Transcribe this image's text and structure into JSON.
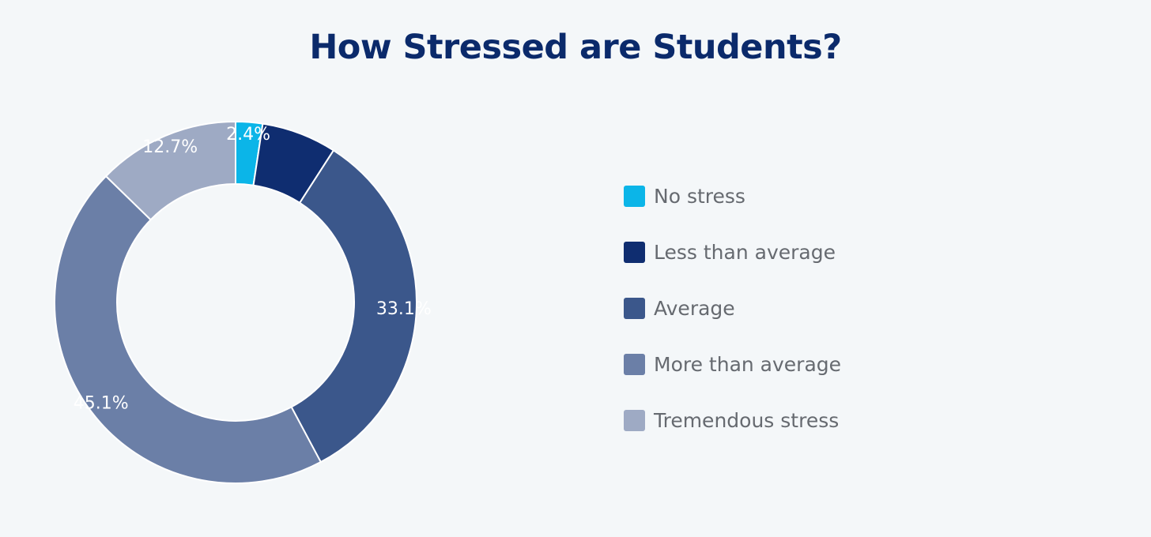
{
  "chart_data": {
    "type": "pie",
    "variant": "donut",
    "title": "How Stressed are Students?",
    "categories": [
      "No stress",
      "Less than average",
      "Average",
      "More than average",
      "Tremendous stress"
    ],
    "values": [
      2.4,
      6.7,
      33.1,
      45.1,
      12.7
    ],
    "labels": [
      "2.4%",
      "",
      "33.1%",
      "45.1%",
      "12.7%"
    ],
    "colors": [
      "#0bb5e8",
      "#0f2d70",
      "#3b578b",
      "#6b7fa7",
      "#9eaac4"
    ],
    "legend_position": "right"
  }
}
